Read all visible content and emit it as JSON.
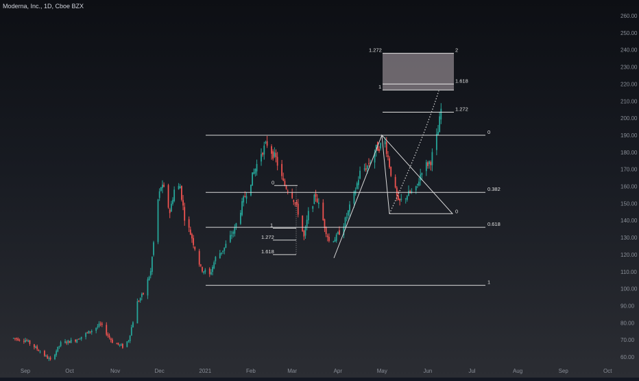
{
  "header": {
    "title": "Moderna, Inc., 1D, Cboe BZX"
  },
  "colors": {
    "up": "#26a69a",
    "down": "#ef5350",
    "line": "#d9d9d9",
    "axis_text": "#8a8f98",
    "box_fill": "#b7aab0"
  },
  "chart_data": {
    "type": "candlestick",
    "title": "Moderna, Inc., 1D, Cboe BZX",
    "xlabel": "",
    "ylabel": "",
    "ylim": [
      55,
      265
    ],
    "y_ticks": [
      60,
      70,
      80,
      90,
      100,
      110,
      120,
      130,
      140,
      150,
      160,
      170,
      180,
      190,
      200,
      210,
      220,
      230,
      240,
      250,
      260
    ],
    "y_tick_labels": [
      "60.00",
      "70.00",
      "80.00",
      "90.00",
      "100.00",
      "110.00",
      "120.00",
      "130.00",
      "140.00",
      "150.00",
      "160.00",
      "170.00",
      "180.00",
      "190.00",
      "200.00",
      "210.00",
      "220.00",
      "230.00",
      "240.00",
      "250.00",
      "260.00"
    ],
    "x_ticks": [
      {
        "label": "Sep",
        "date": "2020-09-01"
      },
      {
        "label": "Oct",
        "date": "2020-10-01"
      },
      {
        "label": "Nov",
        "date": "2020-11-01"
      },
      {
        "label": "Dec",
        "date": "2020-12-01"
      },
      {
        "label": "2021",
        "date": "2021-01-01"
      },
      {
        "label": "Feb",
        "date": "2021-02-01"
      },
      {
        "label": "Mar",
        "date": "2021-03-01"
      },
      {
        "label": "Apr",
        "date": "2021-04-01"
      },
      {
        "label": "May",
        "date": "2021-05-01"
      },
      {
        "label": "Jun",
        "date": "2021-06-01"
      },
      {
        "label": "Jul",
        "date": "2021-07-01"
      },
      {
        "label": "Aug",
        "date": "2021-08-01"
      },
      {
        "label": "Sep",
        "date": "2021-09-01"
      },
      {
        "label": "Oct",
        "date": "2021-10-01"
      }
    ],
    "price_path": [
      [
        "2020-08-24",
        71
      ],
      [
        "2020-09-01",
        70
      ],
      [
        "2020-09-10",
        64
      ],
      [
        "2020-09-18",
        58
      ],
      [
        "2020-09-25",
        68
      ],
      [
        "2020-10-05",
        70
      ],
      [
        "2020-10-15",
        75
      ],
      [
        "2020-10-22",
        79
      ],
      [
        "2020-10-30",
        69
      ],
      [
        "2020-11-06",
        66
      ],
      [
        "2020-11-10",
        70
      ],
      [
        "2020-11-16",
        92
      ],
      [
        "2020-11-20",
        97
      ],
      [
        "2020-11-25",
        110
      ],
      [
        "2020-11-30",
        152
      ],
      [
        "2020-12-02",
        160
      ],
      [
        "2020-12-04",
        158
      ],
      [
        "2020-12-08",
        145
      ],
      [
        "2020-12-11",
        158
      ],
      [
        "2020-12-15",
        160
      ],
      [
        "2020-12-18",
        142
      ],
      [
        "2020-12-23",
        130
      ],
      [
        "2020-12-29",
        112
      ],
      [
        "2021-01-04",
        108
      ],
      [
        "2021-01-08",
        118
      ],
      [
        "2021-01-14",
        124
      ],
      [
        "2021-01-21",
        135
      ],
      [
        "2021-01-27",
        152
      ],
      [
        "2021-02-03",
        168
      ],
      [
        "2021-02-08",
        180
      ],
      [
        "2021-02-12",
        185
      ],
      [
        "2021-02-18",
        176
      ],
      [
        "2021-02-23",
        162
      ],
      [
        "2021-03-01",
        155
      ],
      [
        "2021-03-05",
        145
      ],
      [
        "2021-03-09",
        130
      ],
      [
        "2021-03-12",
        144
      ],
      [
        "2021-03-17",
        155
      ],
      [
        "2021-03-22",
        140
      ],
      [
        "2021-03-26",
        128
      ],
      [
        "2021-03-31",
        130
      ],
      [
        "2021-04-06",
        140
      ],
      [
        "2021-04-12",
        155
      ],
      [
        "2021-04-16",
        168
      ],
      [
        "2021-04-21",
        172
      ],
      [
        "2021-04-27",
        182
      ],
      [
        "2021-05-03",
        186
      ],
      [
        "2021-05-07",
        168
      ],
      [
        "2021-05-12",
        150
      ],
      [
        "2021-05-18",
        155
      ],
      [
        "2021-05-24",
        158
      ],
      [
        "2021-05-28",
        170
      ],
      [
        "2021-06-03",
        175
      ],
      [
        "2021-06-08",
        192
      ],
      [
        "2021-06-10",
        205
      ]
    ],
    "horizontal_levels": [
      {
        "label": "0",
        "value": 190
      },
      {
        "label": "0.382",
        "value": 156.5
      },
      {
        "label": "0.618",
        "value": 136
      },
      {
        "label": "1",
        "value": 102
      }
    ],
    "fib_extension_left": [
      {
        "label": "0",
        "value": 160.5
      },
      {
        "label": "1",
        "value": 135.5
      },
      {
        "label": "1.272",
        "value": 128.5
      },
      {
        "label": "1.618",
        "value": 120
      }
    ],
    "fib_extension_right": [
      {
        "label": "1",
        "value": 216.5
      },
      {
        "label": "1.272",
        "value": 203.5
      },
      {
        "label": "1.618",
        "value": 220
      },
      {
        "label": "2",
        "value": 238
      },
      {
        "label": "1.272",
        "value": 238
      }
    ],
    "triangle_labels": [
      {
        "label": "0",
        "value": 144
      }
    ],
    "grid": false,
    "legend": "none"
  }
}
